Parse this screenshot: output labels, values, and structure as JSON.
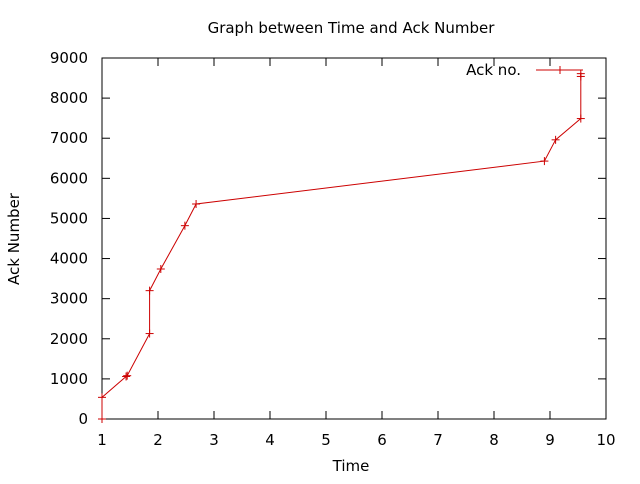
{
  "chart_data": {
    "type": "line",
    "title": "Graph between Time and Ack Number",
    "xlabel": "Time",
    "ylabel": "Ack Number",
    "xlim": [
      1,
      10
    ],
    "ylim": [
      0,
      9000
    ],
    "x_ticks": [
      1,
      2,
      3,
      4,
      5,
      6,
      7,
      8,
      9,
      10
    ],
    "y_ticks": [
      0,
      1000,
      2000,
      3000,
      4000,
      5000,
      6000,
      7000,
      8000,
      9000
    ],
    "grid": false,
    "legend_position": "top-right",
    "series": [
      {
        "name": "Ack no.",
        "color": "#cc0000",
        "marker": "plus",
        "points": [
          {
            "x": 1.0,
            "y": 0
          },
          {
            "x": 1.0,
            "y": 540
          },
          {
            "x": 1.43,
            "y": 1060
          },
          {
            "x": 1.45,
            "y": 1080
          },
          {
            "x": 1.85,
            "y": 2130
          },
          {
            "x": 1.85,
            "y": 3200
          },
          {
            "x": 2.05,
            "y": 3740
          },
          {
            "x": 2.48,
            "y": 4820
          },
          {
            "x": 2.68,
            "y": 5360
          },
          {
            "x": 8.9,
            "y": 6430
          },
          {
            "x": 9.1,
            "y": 6960
          },
          {
            "x": 9.55,
            "y": 7490
          },
          {
            "x": 9.55,
            "y": 8540
          },
          {
            "x": 9.55,
            "y": 8610
          }
        ]
      }
    ]
  }
}
